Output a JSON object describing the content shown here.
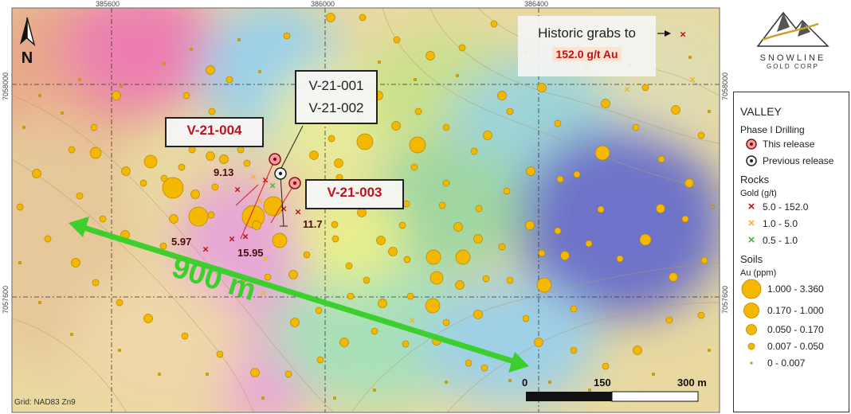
{
  "map": {
    "grid_labels_top": [
      "385600",
      "386000",
      "386400"
    ],
    "grid_labels_side": [
      "7058000",
      "7057600"
    ],
    "grid_note": "Grid: NAD83 Zn9",
    "north_label": "N",
    "distance_label": "900 m",
    "historic_grabs": {
      "text": "Historic grabs to",
      "value": "152.0 g/t Au"
    },
    "callouts": {
      "v001_002": [
        "V-21-001",
        "V-21-002"
      ],
      "v004": "V-21-004",
      "v003": "V-21-003"
    },
    "assays": [
      "9.13",
      "11.7",
      "5.97",
      "15.95"
    ],
    "scale_bar": {
      "labels": [
        "0",
        "150",
        "300 m"
      ]
    }
  },
  "logo": {
    "name": "SNOWLINE",
    "sub": "GOLD CORP"
  },
  "legend": {
    "title": "VALLEY",
    "drilling": {
      "heading": "Phase I Drilling",
      "items": [
        "This release",
        "Previous release"
      ]
    },
    "rocks": {
      "heading": "Rocks",
      "unit": "Gold (g/t)",
      "items": [
        {
          "label": "5.0 - 152.0",
          "color": "#c0121c"
        },
        {
          "label": "1.0 - 5.0",
          "color": "#e8b830"
        },
        {
          "label": "0.5 - 1.0",
          "color": "#4caf50"
        }
      ]
    },
    "soils": {
      "heading": "Soils",
      "unit": "Au (ppm)",
      "items": [
        "1.000 - 3.360",
        "0.170 - 1.000",
        "0.050 - 0.170",
        "0.007 - 0.050",
        "0 - 0.007"
      ]
    },
    "colors": {
      "soil": "#f5b800",
      "soil_stroke": "#b58800",
      "drill_red": "#d9343b",
      "arrow": "#3ccf2e"
    }
  }
}
